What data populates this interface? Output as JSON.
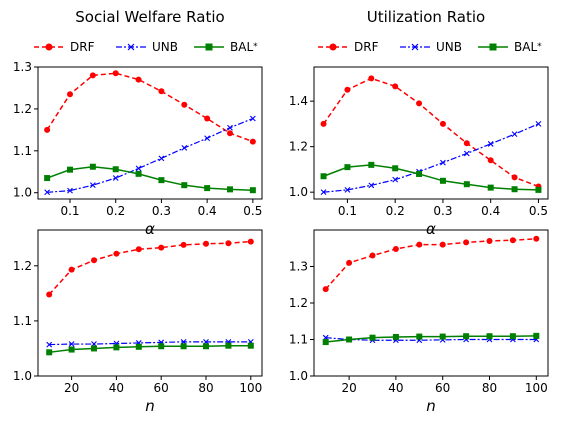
{
  "titles": [
    "Social Welfare Ratio",
    "Utilization Ratio"
  ],
  "legend": [
    {
      "label": "DRF",
      "color": "#ff0000",
      "dash": "5,3",
      "marker": "circle"
    },
    {
      "label": "UNB",
      "color": "#0000ff",
      "dash": "6,2,2,2",
      "marker": "x"
    },
    {
      "label": "BAL",
      "sup": "*",
      "color": "#008000",
      "dash": "",
      "marker": "square"
    }
  ],
  "chart_data": [
    {
      "type": "line",
      "title": "Social Welfare Ratio",
      "xlabel": "α",
      "x": [
        0.05,
        0.1,
        0.15,
        0.2,
        0.25,
        0.3,
        0.35,
        0.4,
        0.45,
        0.5
      ],
      "xlim": [
        0.03,
        0.52
      ],
      "ylim": [
        0.985,
        1.3
      ],
      "xticks": [
        0.1,
        0.2,
        0.3,
        0.4,
        0.5
      ],
      "yticks": [
        1.0,
        1.1,
        1.2,
        1.3
      ],
      "series": [
        {
          "name": "DRF",
          "values": [
            1.15,
            1.235,
            1.28,
            1.285,
            1.27,
            1.242,
            1.21,
            1.177,
            1.142,
            1.122
          ]
        },
        {
          "name": "UNB",
          "values": [
            1.001,
            1.005,
            1.018,
            1.035,
            1.058,
            1.082,
            1.107,
            1.13,
            1.155,
            1.177
          ]
        },
        {
          "name": "BAL*",
          "values": [
            1.035,
            1.055,
            1.062,
            1.056,
            1.045,
            1.03,
            1.018,
            1.011,
            1.008,
            1.006
          ]
        }
      ]
    },
    {
      "type": "line",
      "title": "Utilization Ratio",
      "xlabel": "α",
      "x": [
        0.05,
        0.1,
        0.15,
        0.2,
        0.25,
        0.3,
        0.35,
        0.4,
        0.45,
        0.5
      ],
      "xlim": [
        0.03,
        0.52
      ],
      "ylim": [
        0.97,
        1.55
      ],
      "xticks": [
        0.1,
        0.2,
        0.3,
        0.4,
        0.5
      ],
      "yticks": [
        1.0,
        1.2,
        1.4
      ],
      "series": [
        {
          "name": "DRF",
          "values": [
            1.3,
            1.45,
            1.5,
            1.465,
            1.39,
            1.3,
            1.215,
            1.14,
            1.065,
            1.025
          ]
        },
        {
          "name": "UNB",
          "values": [
            1.0,
            1.01,
            1.03,
            1.055,
            1.09,
            1.13,
            1.17,
            1.212,
            1.255,
            1.3
          ]
        },
        {
          "name": "BAL*",
          "values": [
            1.07,
            1.11,
            1.12,
            1.105,
            1.08,
            1.05,
            1.035,
            1.02,
            1.013,
            1.01
          ]
        }
      ]
    },
    {
      "type": "line",
      "title": "",
      "xlabel": "n",
      "x": [
        10,
        20,
        30,
        40,
        50,
        60,
        70,
        80,
        90,
        100
      ],
      "xlim": [
        5,
        105
      ],
      "ylim": [
        1.0,
        1.265
      ],
      "xticks": [
        20,
        40,
        60,
        80,
        100
      ],
      "yticks": [
        1.0,
        1.1,
        1.2
      ],
      "series": [
        {
          "name": "DRF",
          "values": [
            1.148,
            1.193,
            1.21,
            1.222,
            1.23,
            1.233,
            1.238,
            1.24,
            1.241,
            1.244
          ]
        },
        {
          "name": "UNB",
          "values": [
            1.057,
            1.058,
            1.058,
            1.059,
            1.06,
            1.061,
            1.062,
            1.062,
            1.062,
            1.062
          ]
        },
        {
          "name": "BAL*",
          "values": [
            1.043,
            1.048,
            1.05,
            1.052,
            1.053,
            1.054,
            1.054,
            1.054,
            1.055,
            1.055
          ]
        }
      ]
    },
    {
      "type": "line",
      "title": "",
      "xlabel": "n",
      "x": [
        10,
        20,
        30,
        40,
        50,
        60,
        70,
        80,
        90,
        100
      ],
      "xlim": [
        5,
        105
      ],
      "ylim": [
        1.0,
        1.4
      ],
      "xticks": [
        20,
        40,
        60,
        80,
        100
      ],
      "yticks": [
        1.0,
        1.1,
        1.2,
        1.3
      ],
      "series": [
        {
          "name": "DRF",
          "values": [
            1.238,
            1.31,
            1.33,
            1.348,
            1.36,
            1.36,
            1.366,
            1.37,
            1.372,
            1.376
          ]
        },
        {
          "name": "UNB",
          "values": [
            1.105,
            1.1,
            1.098,
            1.098,
            1.098,
            1.099,
            1.1,
            1.1,
            1.1,
            1.1
          ]
        },
        {
          "name": "BAL*",
          "values": [
            1.093,
            1.1,
            1.105,
            1.107,
            1.108,
            1.108,
            1.109,
            1.109,
            1.109,
            1.11
          ]
        }
      ]
    }
  ]
}
